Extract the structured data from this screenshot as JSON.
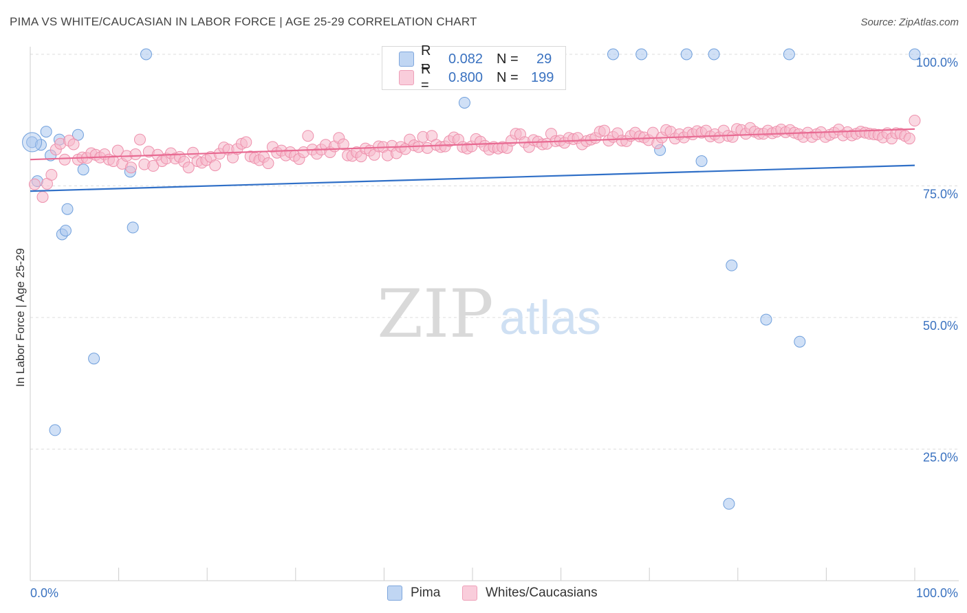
{
  "title": "PIMA VS WHITE/CAUCASIAN IN LABOR FORCE | AGE 25-29 CORRELATION CHART",
  "source": "Source: ZipAtlas.com",
  "watermark": {
    "zip": "ZIP",
    "atlas": "atlas"
  },
  "legend_top": [
    {
      "r_label": "R =",
      "r_value": "0.082",
      "n_label": "N =",
      "n_value": "29",
      "color": "#a9c6ee"
    },
    {
      "r_label": "R =",
      "r_value": "0.800",
      "n_label": "N =",
      "n_value": "199",
      "color": "#f6b8cb"
    }
  ],
  "legend_bottom": [
    {
      "label": "Pima",
      "color": "#a9c6ee"
    },
    {
      "label": "Whites/Caucasians",
      "color": "#f6b8cb"
    }
  ],
  "chart_data": {
    "type": "scatter",
    "title": "PIMA VS WHITE/CAUCASIAN IN LABOR FORCE | AGE 25-29 CORRELATION CHART",
    "xlabel": "",
    "ylabel": "In Labor Force | Age 25-29",
    "xlim": [
      0,
      100
    ],
    "ylim": [
      0,
      100
    ],
    "x_tick_labels": [
      "0.0%",
      "100.0%"
    ],
    "y_tick_labels": [
      "100.0%",
      "75.0%",
      "50.0%",
      "25.0%"
    ],
    "y_ticks": [
      100,
      75,
      50,
      25
    ],
    "grid": true,
    "series": [
      {
        "name": "Pima",
        "color": "#a9c6ee",
        "stroke": "#6f9fdc",
        "trend": {
          "x": [
            0,
            100
          ],
          "y": [
            74.0,
            78.9
          ],
          "color": "#2f6fc7"
        },
        "points": [
          [
            0.2,
            83.3
          ],
          [
            1.2,
            82.8
          ],
          [
            1.8,
            85.3
          ],
          [
            2.3,
            80.8
          ],
          [
            0.8,
            75.9
          ],
          [
            3.3,
            83.8
          ],
          [
            5.4,
            84.7
          ],
          [
            6.0,
            78.1
          ],
          [
            4.2,
            70.6
          ],
          [
            3.6,
            65.8
          ],
          [
            4.0,
            66.5
          ],
          [
            11.6,
            67.1
          ],
          [
            11.3,
            77.7
          ],
          [
            7.2,
            42.2
          ],
          [
            2.8,
            28.6
          ],
          [
            13.1,
            100
          ],
          [
            65.9,
            100
          ],
          [
            69.1,
            100
          ],
          [
            74.2,
            100
          ],
          [
            77.3,
            100
          ],
          [
            85.8,
            100
          ],
          [
            100,
            100
          ],
          [
            49.1,
            90.8
          ],
          [
            71.2,
            81.8
          ],
          [
            75.9,
            79.7
          ],
          [
            79.3,
            59.9
          ],
          [
            83.2,
            49.6
          ],
          [
            87.0,
            45.4
          ],
          [
            79.0,
            14.6
          ]
        ]
      },
      {
        "name": "Whites/Caucasians",
        "color": "#f6b8cb",
        "stroke": "#ee90ac",
        "trend": {
          "x": [
            0,
            100
          ],
          "y": [
            80.0,
            85.8
          ],
          "color": "#e86a92"
        },
        "points": [
          [
            0.5,
            75.3
          ],
          [
            1.4,
            72.9
          ],
          [
            1.9,
            75.4
          ],
          [
            2.4,
            77.1
          ],
          [
            2.9,
            81.9
          ],
          [
            3.4,
            83.0
          ],
          [
            3.9,
            80.0
          ],
          [
            4.4,
            83.6
          ],
          [
            4.9,
            82.9
          ],
          [
            5.4,
            80.0
          ],
          [
            5.9,
            80.4
          ],
          [
            6.4,
            80.3
          ],
          [
            6.9,
            81.2
          ],
          [
            7.4,
            80.9
          ],
          [
            7.9,
            80.4
          ],
          [
            8.4,
            81.0
          ],
          [
            8.9,
            80.0
          ],
          [
            9.4,
            79.7
          ],
          [
            9.9,
            81.7
          ],
          [
            10.4,
            79.2
          ],
          [
            10.9,
            80.7
          ],
          [
            11.4,
            78.5
          ],
          [
            11.9,
            81.0
          ],
          [
            12.4,
            83.8
          ],
          [
            12.9,
            79.1
          ],
          [
            13.4,
            81.5
          ],
          [
            13.9,
            78.8
          ],
          [
            14.4,
            80.9
          ],
          [
            14.9,
            79.7
          ],
          [
            15.4,
            80.2
          ],
          [
            15.9,
            81.2
          ],
          [
            16.4,
            80.2
          ],
          [
            16.9,
            80.5
          ],
          [
            17.4,
            79.6
          ],
          [
            17.9,
            78.5
          ],
          [
            18.4,
            81.3
          ],
          [
            18.9,
            79.7
          ],
          [
            19.4,
            79.4
          ],
          [
            19.9,
            79.9
          ],
          [
            20.4,
            80.5
          ],
          [
            20.9,
            78.9
          ],
          [
            21.4,
            81.1
          ],
          [
            21.9,
            82.3
          ],
          [
            22.4,
            81.9
          ],
          [
            22.9,
            80.4
          ],
          [
            23.4,
            82.0
          ],
          [
            23.9,
            83.0
          ],
          [
            24.4,
            83.3
          ],
          [
            24.9,
            80.6
          ],
          [
            25.4,
            80.3
          ],
          [
            25.9,
            79.9
          ],
          [
            26.4,
            80.5
          ],
          [
            26.9,
            79.3
          ],
          [
            27.4,
            82.4
          ],
          [
            27.9,
            81.3
          ],
          [
            28.4,
            81.7
          ],
          [
            28.9,
            80.8
          ],
          [
            29.4,
            81.4
          ],
          [
            29.9,
            80.7
          ],
          [
            30.4,
            80.1
          ],
          [
            30.9,
            81.4
          ],
          [
            31.4,
            84.5
          ],
          [
            31.9,
            81.9
          ],
          [
            32.4,
            81.1
          ],
          [
            32.9,
            81.9
          ],
          [
            33.4,
            82.8
          ],
          [
            33.9,
            81.4
          ],
          [
            34.4,
            82.5
          ],
          [
            34.9,
            84.1
          ],
          [
            35.4,
            82.9
          ],
          [
            35.9,
            80.8
          ],
          [
            36.4,
            80.7
          ],
          [
            36.9,
            81.4
          ],
          [
            37.4,
            80.6
          ],
          [
            37.9,
            82.1
          ],
          [
            38.4,
            81.7
          ],
          [
            38.9,
            80.9
          ],
          [
            39.4,
            82.5
          ],
          [
            39.9,
            82.4
          ],
          [
            40.4,
            80.8
          ],
          [
            40.9,
            82.6
          ],
          [
            41.4,
            81.2
          ],
          [
            41.9,
            82.4
          ],
          [
            42.4,
            82.0
          ],
          [
            42.9,
            83.8
          ],
          [
            43.4,
            82.7
          ],
          [
            43.9,
            82.4
          ],
          [
            44.4,
            84.3
          ],
          [
            44.9,
            82.2
          ],
          [
            45.4,
            84.5
          ],
          [
            45.9,
            82.8
          ],
          [
            46.4,
            82.4
          ],
          [
            46.9,
            82.5
          ],
          [
            47.4,
            83.5
          ],
          [
            47.9,
            84.2
          ],
          [
            48.4,
            83.8
          ],
          [
            48.9,
            82.4
          ],
          [
            49.4,
            82.1
          ],
          [
            49.9,
            82.5
          ],
          [
            50.4,
            83.9
          ],
          [
            50.9,
            83.4
          ],
          [
            51.4,
            82.6
          ],
          [
            51.9,
            81.9
          ],
          [
            52.4,
            82.4
          ],
          [
            52.9,
            82.1
          ],
          [
            53.4,
            82.4
          ],
          [
            53.9,
            82.2
          ],
          [
            54.4,
            83.6
          ],
          [
            54.9,
            84.9
          ],
          [
            55.4,
            84.8
          ],
          [
            55.9,
            83.3
          ],
          [
            56.4,
            82.4
          ],
          [
            56.9,
            83.7
          ],
          [
            57.4,
            83.4
          ],
          [
            57.9,
            82.9
          ],
          [
            58.4,
            83.0
          ],
          [
            58.9,
            84.9
          ],
          [
            59.4,
            83.5
          ],
          [
            59.9,
            83.6
          ],
          [
            60.4,
            83.2
          ],
          [
            60.9,
            84.1
          ],
          [
            61.4,
            83.9
          ],
          [
            61.9,
            84.1
          ],
          [
            62.4,
            82.9
          ],
          [
            62.9,
            83.5
          ],
          [
            63.4,
            83.8
          ],
          [
            63.9,
            84.1
          ],
          [
            64.4,
            85.3
          ],
          [
            64.9,
            85.5
          ],
          [
            65.4,
            83.6
          ],
          [
            65.9,
            84.3
          ],
          [
            66.4,
            85.0
          ],
          [
            66.9,
            83.6
          ],
          [
            67.4,
            83.5
          ],
          [
            67.9,
            84.5
          ],
          [
            68.4,
            85.1
          ],
          [
            68.9,
            84.4
          ],
          [
            69.4,
            84.2
          ],
          [
            69.9,
            83.7
          ],
          [
            70.4,
            85.1
          ],
          [
            70.9,
            83.1
          ],
          [
            71.4,
            84.2
          ],
          [
            71.9,
            85.6
          ],
          [
            72.4,
            85.3
          ],
          [
            72.9,
            84.0
          ],
          [
            73.4,
            84.8
          ],
          [
            73.9,
            84.2
          ],
          [
            74.4,
            85.1
          ],
          [
            74.9,
            84.8
          ],
          [
            75.4,
            85.4
          ],
          [
            75.9,
            85.1
          ],
          [
            76.4,
            85.5
          ],
          [
            76.9,
            84.4
          ],
          [
            77.4,
            84.8
          ],
          [
            77.9,
            84.2
          ],
          [
            78.4,
            85.5
          ],
          [
            78.9,
            84.5
          ],
          [
            79.4,
            84.3
          ],
          [
            79.9,
            85.8
          ],
          [
            80.4,
            85.6
          ],
          [
            80.9,
            84.9
          ],
          [
            81.4,
            86.0
          ],
          [
            81.9,
            85.3
          ],
          [
            82.4,
            84.9
          ],
          [
            82.9,
            84.9
          ],
          [
            83.4,
            85.5
          ],
          [
            83.9,
            85.0
          ],
          [
            84.4,
            85.3
          ],
          [
            84.9,
            85.7
          ],
          [
            85.4,
            85.2
          ],
          [
            85.9,
            85.6
          ],
          [
            86.4,
            85.1
          ],
          [
            86.9,
            84.8
          ],
          [
            87.4,
            84.3
          ],
          [
            87.9,
            85.1
          ],
          [
            88.4,
            84.3
          ],
          [
            88.9,
            84.8
          ],
          [
            89.4,
            85.2
          ],
          [
            89.9,
            84.3
          ],
          [
            90.4,
            84.7
          ],
          [
            90.9,
            85.1
          ],
          [
            91.4,
            85.7
          ],
          [
            91.9,
            84.6
          ],
          [
            92.4,
            85.2
          ],
          [
            92.9,
            84.6
          ],
          [
            93.4,
            84.9
          ],
          [
            93.9,
            85.3
          ],
          [
            94.4,
            85.1
          ],
          [
            94.9,
            84.9
          ],
          [
            95.4,
            84.8
          ],
          [
            95.9,
            84.7
          ],
          [
            96.4,
            84.2
          ],
          [
            96.9,
            85.0
          ],
          [
            97.4,
            84.0
          ],
          [
            97.9,
            85.0
          ],
          [
            98.4,
            84.9
          ],
          [
            98.9,
            84.5
          ],
          [
            99.4,
            84.0
          ],
          [
            100.0,
            87.4
          ]
        ]
      }
    ]
  }
}
